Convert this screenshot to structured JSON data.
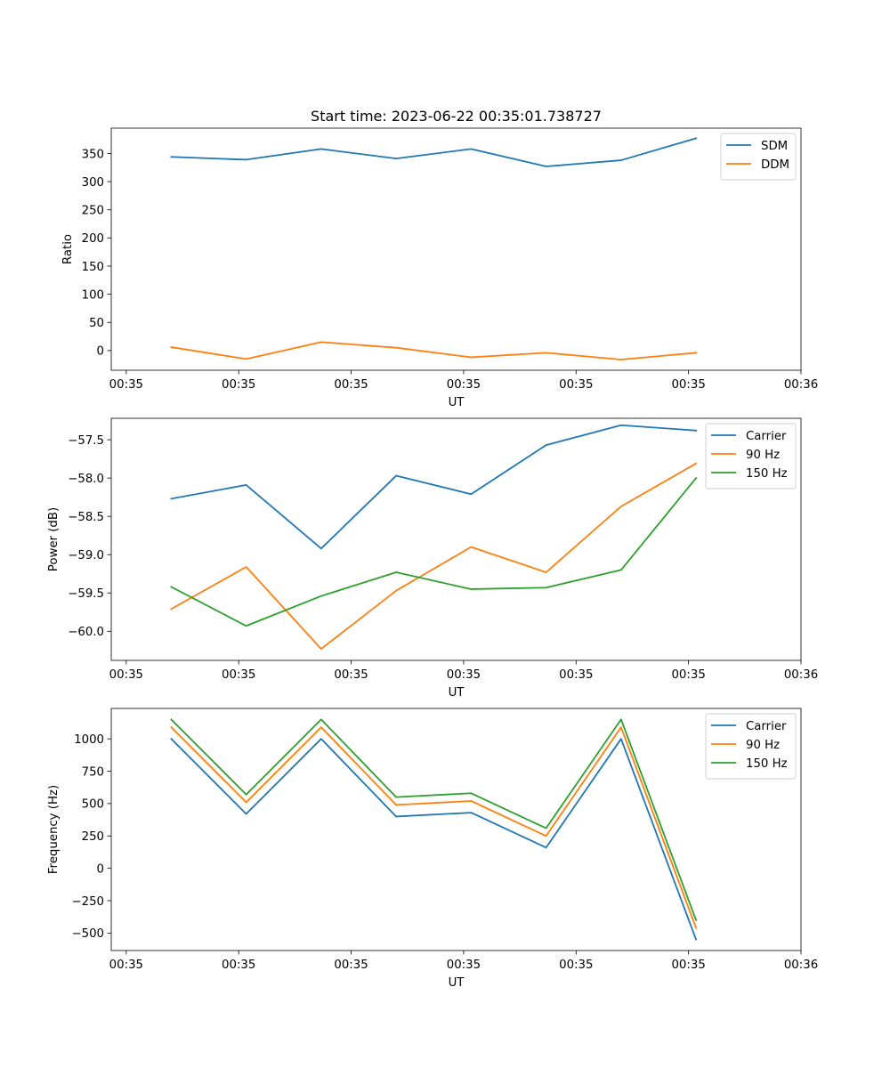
{
  "figure": {
    "title": "Start time: 2023-06-22 00:35:01.738727"
  },
  "chart_data": [
    {
      "type": "line",
      "x": [
        1,
        2,
        3,
        4,
        5,
        6,
        7,
        8
      ],
      "xlim": [
        0.2,
        9.4
      ],
      "ylim": [
        -35,
        395
      ],
      "xticks": [
        0.4,
        1.9,
        3.4,
        4.9,
        6.4,
        7.9,
        9.4
      ],
      "xtick_labels": [
        "00:35",
        "00:35",
        "00:35",
        "00:35",
        "00:35",
        "00:35",
        "00:36"
      ],
      "yticks": [
        0,
        50,
        100,
        150,
        200,
        250,
        300,
        350
      ],
      "ytick_labels": [
        "0",
        "50",
        "100",
        "150",
        "200",
        "250",
        "300",
        "350"
      ],
      "xlabel": "UT",
      "ylabel": "Ratio",
      "legend_position": "top-right",
      "series": [
        {
          "name": "SDM",
          "color": "#1f77b4",
          "values": [
            344,
            339,
            358,
            341,
            358,
            327,
            338,
            377
          ]
        },
        {
          "name": "DDM",
          "color": "#ff7f0e",
          "values": [
            6,
            -15,
            15,
            5,
            -12,
            -4,
            -16,
            -4
          ]
        }
      ]
    },
    {
      "type": "line",
      "x": [
        1,
        2,
        3,
        4,
        5,
        6,
        7,
        8
      ],
      "xlim": [
        0.2,
        9.4
      ],
      "ylim": [
        -60.38,
        -57.22
      ],
      "xticks": [
        0.4,
        1.9,
        3.4,
        4.9,
        6.4,
        7.9,
        9.4
      ],
      "xtick_labels": [
        "00:35",
        "00:35",
        "00:35",
        "00:35",
        "00:35",
        "00:35",
        "00:36"
      ],
      "yticks": [
        -60.0,
        -59.5,
        -59.0,
        -58.5,
        -58.0,
        -57.5
      ],
      "ytick_labels": [
        "−60.0",
        "−59.5",
        "−59.0",
        "−58.5",
        "−58.0",
        "−57.5"
      ],
      "xlabel": "UT",
      "ylabel": "Power (dB)",
      "legend_position": "top-right",
      "series": [
        {
          "name": "Carrier",
          "color": "#1f77b4",
          "values": [
            -58.27,
            -58.09,
            -58.92,
            -57.97,
            -58.21,
            -57.57,
            -57.31,
            -57.38
          ]
        },
        {
          "name": "90 Hz",
          "color": "#ff7f0e",
          "values": [
            -59.71,
            -59.16,
            -60.23,
            -59.47,
            -58.9,
            -59.23,
            -58.37,
            -57.81
          ]
        },
        {
          "name": "150 Hz",
          "color": "#2ca02c",
          "values": [
            -59.42,
            -59.93,
            -59.54,
            -59.23,
            -59.45,
            -59.43,
            -59.2,
            -58.0
          ]
        }
      ]
    },
    {
      "type": "line",
      "x": [
        1,
        2,
        3,
        4,
        5,
        6,
        7,
        8
      ],
      "xlim": [
        0.2,
        9.4
      ],
      "ylim": [
        -635,
        1235
      ],
      "xticks": [
        0.4,
        1.9,
        3.4,
        4.9,
        6.4,
        7.9,
        9.4
      ],
      "xtick_labels": [
        "00:35",
        "00:35",
        "00:35",
        "00:35",
        "00:35",
        "00:35",
        "00:36"
      ],
      "yticks": [
        -500,
        -250,
        0,
        250,
        500,
        750,
        1000
      ],
      "ytick_labels": [
        "−500",
        "−250",
        "0",
        "250",
        "500",
        "750",
        "1000"
      ],
      "xlabel": "UT",
      "ylabel": "Frequency (Hz)",
      "legend_position": "top-right",
      "series": [
        {
          "name": "Carrier",
          "color": "#1f77b4",
          "values": [
            1000,
            420,
            1000,
            400,
            430,
            160,
            1000,
            -550
          ]
        },
        {
          "name": "90 Hz",
          "color": "#ff7f0e",
          "values": [
            1090,
            510,
            1090,
            490,
            520,
            250,
            1090,
            -460
          ]
        },
        {
          "name": "150 Hz",
          "color": "#2ca02c",
          "values": [
            1150,
            570,
            1150,
            550,
            580,
            310,
            1150,
            -400
          ]
        }
      ]
    }
  ]
}
